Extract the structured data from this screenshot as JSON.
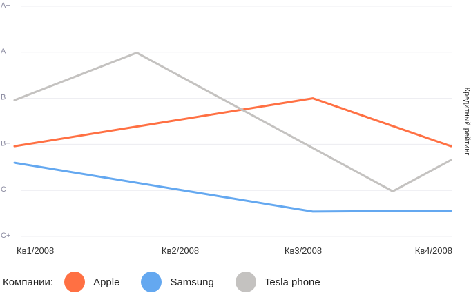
{
  "chart_data": {
    "type": "line",
    "categories": [
      "Кв1/2008",
      "Кв2/2008",
      "Кв3/2008",
      "Кв4/2008"
    ],
    "y_categories": [
      "C+",
      "C",
      "B+",
      "B",
      "A",
      "A+"
    ],
    "y_axis_title": "Кредитный рейтинг",
    "legend_title": "Компании:",
    "grid": true,
    "legend_position": "bottom",
    "series": [
      {
        "name": "Apple",
        "color": "#ff7043",
        "points": [
          {
            "x": 0.0,
            "y": 1.96
          },
          {
            "x": 2.05,
            "y": 3.0
          },
          {
            "x": 3.0,
            "y": 1.96
          }
        ]
      },
      {
        "name": "Samsung",
        "color": "#64a8f0",
        "points": [
          {
            "x": 0.0,
            "y": 1.6
          },
          {
            "x": 2.05,
            "y": 0.54
          },
          {
            "x": 3.0,
            "y": 0.56
          }
        ]
      },
      {
        "name": "Tesla phone",
        "color": "#c4c2c0",
        "points": [
          {
            "x": 0.0,
            "y": 2.96
          },
          {
            "x": 0.84,
            "y": 3.99
          },
          {
            "x": 2.6,
            "y": 0.98
          },
          {
            "x": 3.0,
            "y": 1.66
          }
        ]
      }
    ]
  }
}
